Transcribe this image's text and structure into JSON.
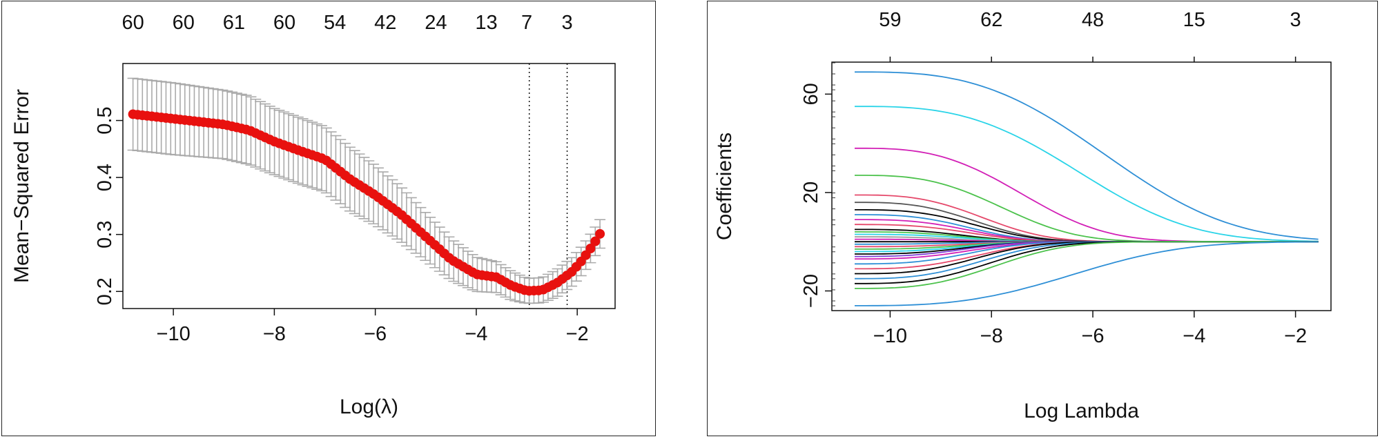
{
  "chart_data": [
    {
      "type": "scatter",
      "title": "",
      "xlabel": "Log(λ)",
      "ylabel": "Mean−Squared Error",
      "xlim": [
        -11.0,
        -1.25
      ],
      "ylim": [
        0.17,
        0.6
      ],
      "x_ticks": [
        -10,
        -8,
        -6,
        -4,
        -2
      ],
      "x_tick_labels": [
        "−10",
        "−8",
        "−6",
        "−4",
        "−2"
      ],
      "y_ticks": [
        0.2,
        0.3,
        0.4,
        0.5
      ],
      "y_tick_labels": [
        "0.2",
        "0.3",
        "0.4",
        "0.5"
      ],
      "top_axis": {
        "positions": [
          -10.8,
          -9.8,
          -8.8,
          -7.8,
          -6.8,
          -5.8,
          -4.8,
          -3.8,
          -3.0,
          -2.2
        ],
        "labels": [
          "60",
          "60",
          "61",
          "60",
          "54",
          "42",
          "24",
          "13",
          "7",
          "3"
        ]
      },
      "vlines": [
        -2.95,
        -2.2
      ],
      "series_color": "#e8110f",
      "errorbar_color": "#aaaaaa",
      "curve_knots": {
        "x": [
          -10.8,
          -10.0,
          -9.0,
          -8.5,
          -8.0,
          -7.5,
          -7.0,
          -6.5,
          -6.0,
          -5.5,
          -5.0,
          -4.5,
          -4.0,
          -3.6,
          -3.3,
          -3.0,
          -2.7,
          -2.4,
          -2.1,
          -1.9,
          -1.7,
          -1.55
        ],
        "mean": [
          0.511,
          0.503,
          0.493,
          0.483,
          0.463,
          0.447,
          0.432,
          0.397,
          0.369,
          0.336,
          0.296,
          0.256,
          0.23,
          0.225,
          0.21,
          0.201,
          0.202,
          0.215,
          0.235,
          0.255,
          0.28,
          0.301
        ],
        "se": [
          0.063,
          0.063,
          0.06,
          0.06,
          0.058,
          0.058,
          0.057,
          0.056,
          0.052,
          0.048,
          0.042,
          0.036,
          0.03,
          0.027,
          0.025,
          0.022,
          0.022,
          0.024,
          0.025,
          0.025,
          0.025,
          0.025
        ]
      }
    },
    {
      "type": "line",
      "title": "",
      "xlabel": "Log Lambda",
      "ylabel": "Coefficients",
      "xlim": [
        -11.15,
        -1.3
      ],
      "ylim": [
        -28,
        73
      ],
      "x_ticks": [
        -10,
        -8,
        -6,
        -4,
        -2
      ],
      "x_tick_labels": [
        "−10",
        "−8",
        "−6",
        "−4",
        "−2"
      ],
      "y_ticks": [
        -20,
        20,
        60
      ],
      "y_tick_labels": [
        "−20",
        "20",
        "60"
      ],
      "top_axis": {
        "positions": [
          -10,
          -8,
          -6,
          -4,
          -2
        ],
        "labels": [
          "59",
          "62",
          "48",
          "15",
          "3"
        ]
      },
      "x_start": -10.7,
      "x_end": -1.55,
      "series": [
        {
          "start": 69,
          "color": "#2e8fd6",
          "fade": 1.95
        },
        {
          "start": 55,
          "color": "#2ad4e8",
          "fade": 1.75
        },
        {
          "start": 38,
          "color": "#d21fb6",
          "fade": 1.3
        },
        {
          "start": 27,
          "color": "#4cc24c",
          "fade": 1.15
        },
        {
          "start": 19,
          "color": "#e5486a",
          "fade": 1.0
        },
        {
          "start": 16,
          "color": "#555555",
          "fade": 0.95
        },
        {
          "start": 13,
          "color": "#000000",
          "fade": 0.95
        },
        {
          "start": 11,
          "color": "#2e8fd6",
          "fade": 0.9
        },
        {
          "start": 9,
          "color": "#d21fb6",
          "fade": 0.9
        },
        {
          "start": 7,
          "color": "#e5486a",
          "fade": 0.9
        },
        {
          "start": 5,
          "color": "#000000",
          "fade": 0.85
        },
        {
          "start": 4,
          "color": "#4cc24c",
          "fade": 0.85
        },
        {
          "start": 3,
          "color": "#2ad4e8",
          "fade": 0.85
        },
        {
          "start": 2,
          "color": "#9a9a9a",
          "fade": 0.8
        },
        {
          "start": 1,
          "color": "#d21fb6",
          "fade": 0.8
        },
        {
          "start": 0,
          "color": "#000000",
          "fade": 0.8
        },
        {
          "start": -1,
          "color": "#2e8fd6",
          "fade": 0.8
        },
        {
          "start": -2,
          "color": "#e5486a",
          "fade": 0.85
        },
        {
          "start": -3,
          "color": "#4cc24c",
          "fade": 0.85
        },
        {
          "start": -4,
          "color": "#2ad4e8",
          "fade": 0.85
        },
        {
          "start": -5,
          "color": "#000000",
          "fade": 0.85
        },
        {
          "start": -6,
          "color": "#7b3fd6",
          "fade": 0.85
        },
        {
          "start": -7,
          "color": "#d21fb6",
          "fade": 0.9
        },
        {
          "start": -9,
          "color": "#2e8fd6",
          "fade": 0.9
        },
        {
          "start": -11,
          "color": "#e5486a",
          "fade": 0.95
        },
        {
          "start": -13,
          "color": "#000000",
          "fade": 0.95
        },
        {
          "start": -15,
          "color": "#2e8fd6",
          "fade": 1.0
        },
        {
          "start": -17,
          "color": "#000000",
          "fade": 1.05
        },
        {
          "start": -19,
          "color": "#4cc24c",
          "fade": 1.1
        },
        {
          "start": -26,
          "color": "#2e8fd6",
          "fade": 1.7
        }
      ]
    }
  ]
}
